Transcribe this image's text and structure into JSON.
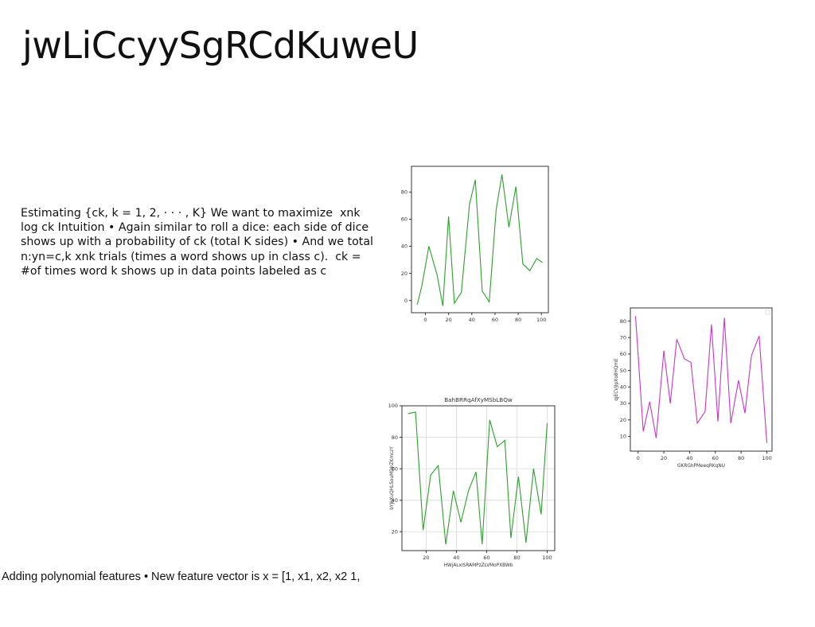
{
  "slide": {
    "title": "jwLiCcyySgRCdKuweU",
    "body_text": "Estimating {\u001fck, k = 1, 2, · · · , K} We want to maximize \u001f xnk log \u001fck Intuition • Again similar to roll a dice: each side of dice shows up with a probability of \u001fck (total K sides) • And we total \u001f n:yn=c,k xnk trials (times a word shows up in class c). \u001f\u001f ck = #of times word k shows up in data points labeled as c",
    "footer_text": "Adding polynomial features • New feature vector is x = [1, x1, x2, x2 1,"
  },
  "chart_data": [
    {
      "type": "line",
      "title": "",
      "xlabel": "",
      "ylabel": "",
      "x": [
        -7,
        -3,
        3,
        10,
        15,
        20,
        25,
        31,
        38,
        43,
        49,
        55,
        61,
        66,
        72,
        78,
        84,
        90,
        96,
        101
      ],
      "series": [
        {
          "color": "#2ca02c",
          "values": [
            -3,
            11,
            40,
            19,
            -4,
            62,
            -2,
            6,
            71,
            89,
            7,
            -1,
            67,
            93,
            54,
            84,
            27,
            22,
            31,
            28
          ]
        }
      ],
      "xlim": [
        -12,
        106
      ],
      "ylim": [
        -9,
        99
      ],
      "xticks": [
        0,
        20,
        40,
        60,
        80,
        100
      ],
      "yticks": [
        0,
        20,
        40,
        60,
        80
      ],
      "grid": false
    },
    {
      "type": "line",
      "title": "",
      "xlabel": "GKRGhPMeeqRKgNU",
      "ylabel": "qjECVjIpXo8HQmE",
      "x": [
        -2,
        4,
        9,
        14,
        20,
        25,
        30,
        36,
        41,
        46,
        52,
        57,
        62,
        67,
        72,
        78,
        83,
        88,
        94,
        100
      ],
      "series": [
        {
          "color": "#cc33cc",
          "values": [
            83,
            13,
            31,
            9,
            62,
            30,
            69,
            57,
            55,
            18,
            25,
            78,
            19,
            82,
            18,
            44,
            24,
            59,
            71,
            6
          ]
        }
      ],
      "xlim": [
        -6,
        104
      ],
      "ylim": [
        1,
        88
      ],
      "xticks": [
        0,
        20,
        40,
        60,
        80,
        100
      ],
      "yticks": [
        10,
        20,
        30,
        40,
        50,
        60,
        70,
        80
      ],
      "grid": false
    },
    {
      "type": "line",
      "title": "BahBRRqAfXyMSbLBQw",
      "xlabel": "HWjALxISRAMPzZLVMoPXBWb",
      "ylabel": "bYjkXuQHLSouMDjrZKmczY",
      "x": [
        8,
        13,
        18,
        23,
        28,
        33,
        38,
        43,
        48,
        53,
        57,
        62,
        67,
        72,
        76,
        81,
        86,
        91,
        96,
        100
      ],
      "series": [
        {
          "color": "#2ca02c",
          "values": [
            95,
            96,
            21,
            56,
            62,
            12,
            46,
            26,
            46,
            58,
            12,
            91,
            74,
            78,
            16,
            55,
            13,
            60,
            31,
            89
          ]
        }
      ],
      "xlim": [
        4,
        105
      ],
      "ylim": [
        8,
        100
      ],
      "xticks": [
        20,
        40,
        60,
        80,
        100
      ],
      "yticks": [
        20,
        40,
        60,
        80,
        100
      ],
      "grid": true
    }
  ]
}
